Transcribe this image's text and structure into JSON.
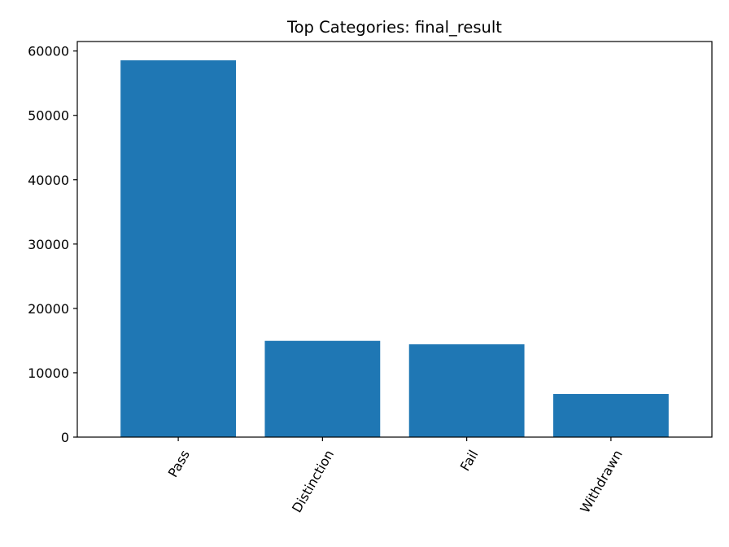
{
  "chart_data": {
    "type": "bar",
    "title": "Top Categories: final_result",
    "xlabel": "",
    "ylabel": "",
    "categories": [
      "Pass",
      "Distinction",
      "Fail",
      "Withdrawn"
    ],
    "values": [
      58550,
      14960,
      14420,
      6700
    ],
    "ylim": [
      0,
      61475
    ],
    "yticks": [
      0,
      10000,
      20000,
      30000,
      40000,
      50000,
      60000
    ],
    "ytick_labels": [
      "0",
      "10000",
      "20000",
      "30000",
      "40000",
      "50000",
      "60000"
    ],
    "bar_color": "#1f77b4",
    "grid": false,
    "legend": "none",
    "xtick_rotation": "60 degrees"
  }
}
